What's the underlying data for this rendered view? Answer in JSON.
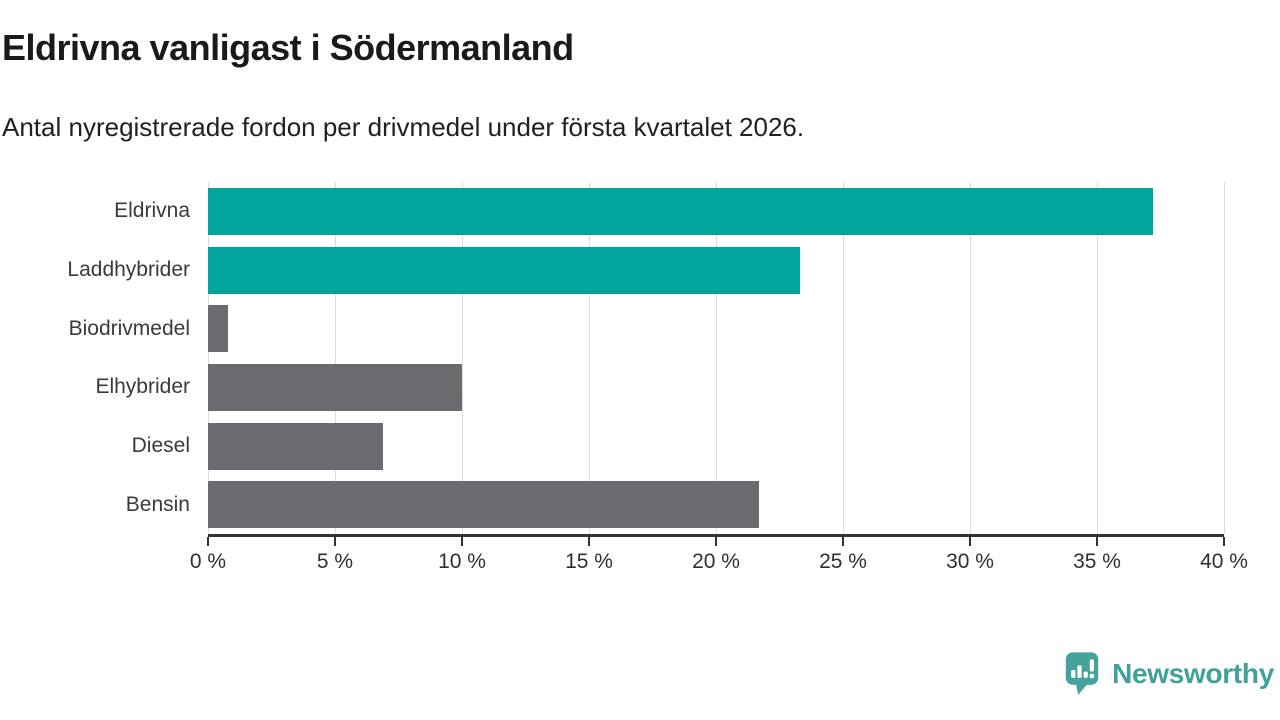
{
  "chart_data": {
    "type": "bar",
    "orientation": "horizontal",
    "title": "Eldrivna vanligast i Södermanland",
    "subtitle": "Antal nyregistrerade fordon per drivmedel under första kvartalet 2026.",
    "categories": [
      "Eldrivna",
      "Laddhybrider",
      "Biodrivmedel",
      "Elhybrider",
      "Diesel",
      "Bensin"
    ],
    "values": [
      37.2,
      23.3,
      0.8,
      10.0,
      6.9,
      21.7
    ],
    "unit": "%",
    "xlabel": "",
    "ylabel": "",
    "xlim": [
      0,
      40
    ],
    "x_ticks": [
      {
        "value": 0,
        "label": "0 %"
      },
      {
        "value": 5,
        "label": "5 %"
      },
      {
        "value": 10,
        "label": "10 %"
      },
      {
        "value": 15,
        "label": "15 %"
      },
      {
        "value": 20,
        "label": "20 %"
      },
      {
        "value": 25,
        "label": "25 %"
      },
      {
        "value": 30,
        "label": "30 %"
      },
      {
        "value": 35,
        "label": "35 %"
      },
      {
        "value": 40,
        "label": "40 %"
      }
    ],
    "grid": "vertical-only",
    "legend": "none",
    "bar_colors": [
      "#00a49c",
      "#00a49c",
      "#6a6a6f",
      "#6a6a6f",
      "#6a6a6f",
      "#6a6a6f"
    ],
    "colors": {
      "highlight": "#00a49c",
      "neutral": "#6a6a6f",
      "gridline": "#dcdcdc",
      "axis": "#333333",
      "title_text": "#1a1a1a",
      "label_text": "#3a3a3a"
    }
  },
  "footer": {
    "brand": "Newsworthy",
    "brand_color": "#3fa29a",
    "icon": "bar-chart-speech-bubble-icon",
    "icon_color": "#45a39c"
  }
}
